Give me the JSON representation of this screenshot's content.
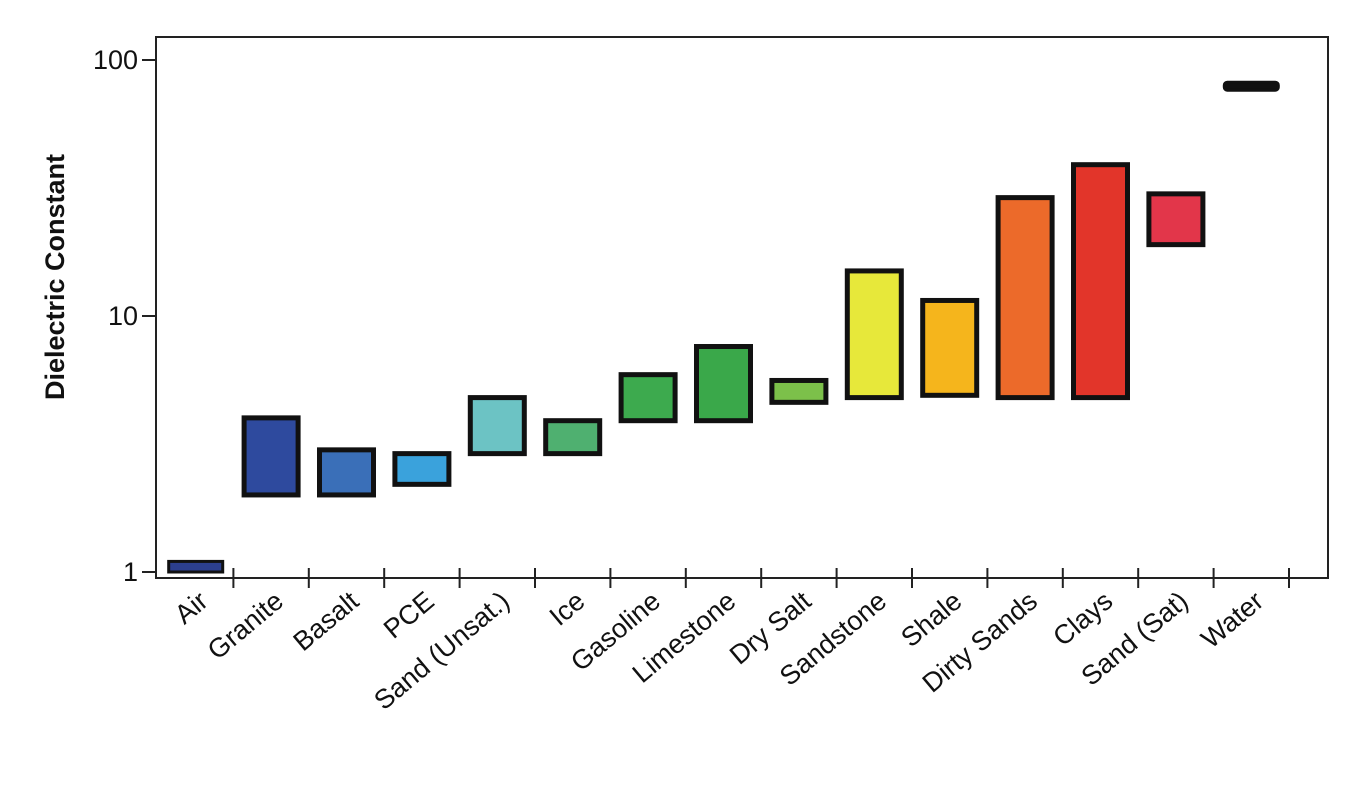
{
  "chart_data": {
    "type": "bar",
    "title": "",
    "xlabel": "",
    "ylabel": "Dielectric Constant",
    "yscale": "log",
    "ylim": [
      1,
      130
    ],
    "yticks": [
      1,
      10,
      100
    ],
    "ytick_labels": [
      "1",
      "10",
      "100"
    ],
    "grid": false,
    "legend": "none",
    "categories": [
      "Air",
      "Granite",
      "Basalt",
      "PCE",
      "Sand (Unsat.)",
      "Ice",
      "Gasoline",
      "Limestone",
      "Dry Salt",
      "Sandstone",
      "Shale",
      "Dirty Sands",
      "Clays",
      "Sand (Sat)",
      "Water"
    ],
    "series": [
      {
        "low": [
          1,
          2,
          2,
          2.2,
          2.9,
          2.9,
          3.9,
          3.9,
          4.6,
          4.8,
          4.9,
          4.8,
          4.8,
          19,
          78
        ],
        "high": [
          1.1,
          4,
          3,
          2.9,
          4.8,
          3.9,
          5.9,
          7.6,
          5.6,
          15,
          11.5,
          29,
          39,
          30,
          80
        ],
        "colors": [
          "#2c3f8e",
          "#2e4a9e",
          "#3a6fb8",
          "#3aa2dc",
          "#6cc3c4",
          "#4fb070",
          "#3daa4e",
          "#3aa84a",
          "#7cc04a",
          "#e7e83a",
          "#f5b51c",
          "#ec6a2a",
          "#e2352a",
          "#e2364a",
          "#111111"
        ]
      }
    ]
  }
}
